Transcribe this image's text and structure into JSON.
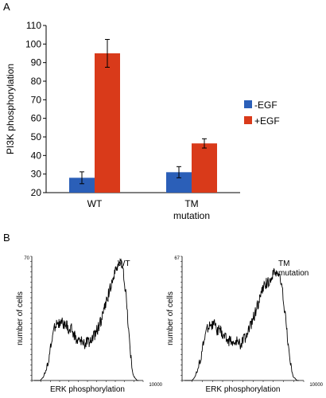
{
  "panels": {
    "a_letter": "A",
    "b_letter": "B"
  },
  "chart_data": [
    {
      "type": "bar",
      "title": "",
      "ylabel": "PI3K phosphorylation",
      "xlabel": "",
      "ylim": [
        20,
        110
      ],
      "yticks": [
        20,
        30,
        40,
        50,
        60,
        70,
        80,
        90,
        100,
        110
      ],
      "categories": [
        "WT",
        "TM\nmutation"
      ],
      "series": [
        {
          "name": "-EGF",
          "color": "#2b5fb8",
          "values": [
            28,
            31
          ],
          "errors": [
            3.2,
            3
          ]
        },
        {
          "name": "+EGF",
          "color": "#d93a1a",
          "values": [
            95,
            46.5
          ],
          "errors": [
            7.5,
            2.5
          ]
        }
      ],
      "legend": "right"
    },
    {
      "type": "line",
      "xlabel": "ERK phosphorylation",
      "ylabel": "number of cells",
      "annotation": "WT",
      "y_max_label": "70",
      "x_max_label": "10000",
      "profile": [
        0,
        0,
        0,
        0,
        0,
        1,
        2,
        4,
        6,
        10,
        14,
        19,
        24,
        28,
        30,
        31,
        30,
        29,
        31,
        30,
        28,
        29,
        27,
        26,
        28,
        25,
        24,
        22,
        21,
        22,
        20,
        21,
        19,
        20,
        21,
        20,
        22,
        21,
        23,
        24,
        26,
        28,
        30,
        32,
        35,
        38,
        40,
        43,
        47,
        50,
        53,
        55,
        57,
        60,
        62,
        63,
        61,
        58,
        52,
        44,
        33,
        22,
        12,
        5,
        2,
        1,
        0,
        0
      ]
    },
    {
      "type": "line",
      "xlabel": "ERK phosphorylation",
      "ylabel": "number of cells",
      "annotation": "TM\nmutation",
      "y_max_label": "67",
      "x_max_label": "10000",
      "profile": [
        0,
        0,
        0,
        0,
        0,
        1,
        3,
        5,
        9,
        13,
        18,
        23,
        27,
        29,
        30,
        29,
        30,
        28,
        26,
        27,
        25,
        24,
        23,
        22,
        21,
        22,
        20,
        19,
        20,
        21,
        19,
        20,
        22,
        23,
        25,
        27,
        29,
        32,
        35,
        38,
        41,
        44,
        47,
        49,
        51,
        52,
        53,
        54,
        56,
        57,
        58,
        56,
        53,
        48,
        40,
        31,
        21,
        12,
        6,
        2,
        1,
        0,
        0
      ]
    }
  ]
}
